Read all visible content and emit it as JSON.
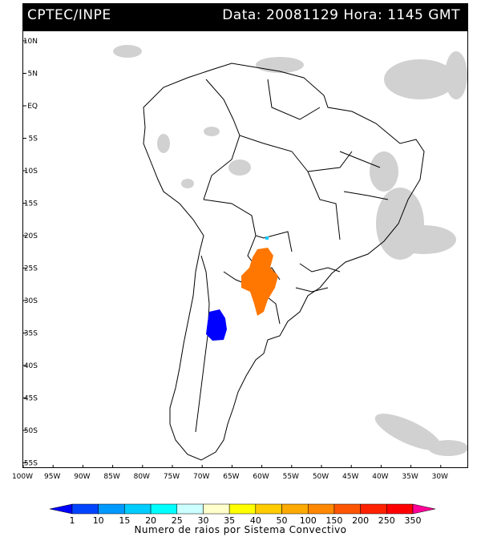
{
  "header": {
    "source": "CPTEC/INPE",
    "datetime": "Data: 20081129 Hora: 1145 GMT"
  },
  "map": {
    "lat_labels": [
      "10N",
      "5N",
      "EQ",
      "5S",
      "10S",
      "15S",
      "20S",
      "25S",
      "30S",
      "35S",
      "40S",
      "45S",
      "50S",
      "55S"
    ],
    "lon_labels": [
      "100W",
      "95W",
      "90W",
      "85W",
      "80W",
      "75W",
      "70W",
      "65W",
      "60W",
      "55W",
      "50W",
      "45W",
      "40W",
      "35W",
      "30W"
    ]
  },
  "legend": {
    "caption": "Numero de raios por Sistema Convectivo",
    "ticks": [
      "1",
      "10",
      "15",
      "20",
      "25",
      "30",
      "35",
      "40",
      "50",
      "100",
      "150",
      "200",
      "250",
      "350"
    ],
    "colors": [
      "#0000ff",
      "#0044ff",
      "#0099ff",
      "#00ccff",
      "#00ffff",
      "#ccffff",
      "#ffffcc",
      "#ffff00",
      "#ffcc00",
      "#ffaa00",
      "#ff8800",
      "#ff5500",
      "#ff2200",
      "#ff0000",
      "#ff0099"
    ]
  },
  "systems": [
    {
      "name": "paraguay-system",
      "color": "#ff7700"
    },
    {
      "name": "argentina-system",
      "color": "#0000ff"
    },
    {
      "name": "bolivia-small-system",
      "color": "#00ccff"
    }
  ]
}
